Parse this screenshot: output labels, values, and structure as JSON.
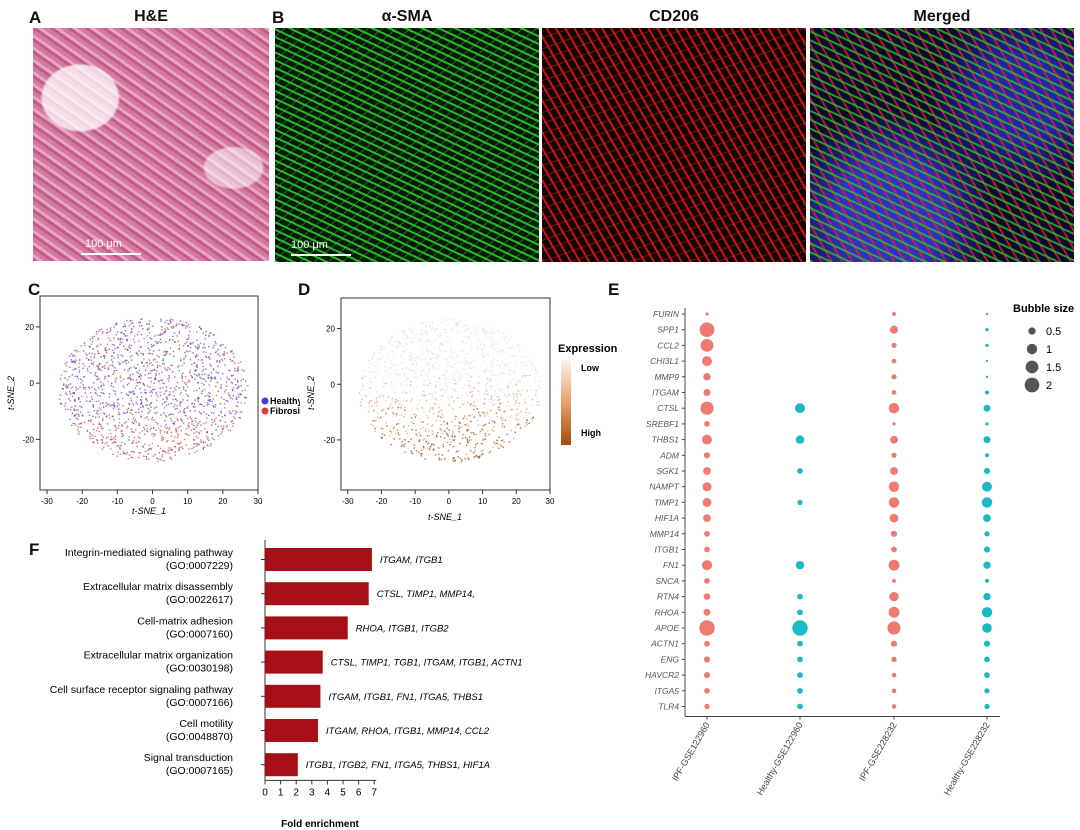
{
  "panels": {
    "A": {
      "label": "A",
      "title": "H&E",
      "scale": "100 μm"
    },
    "B": {
      "label": "B",
      "titles": [
        "α-SMA",
        "CD206",
        "Merged"
      ],
      "scale": "100 μm"
    },
    "C": {
      "label": "C"
    },
    "D": {
      "label": "D"
    },
    "E": {
      "label": "E"
    },
    "F": {
      "label": "F"
    }
  },
  "colors": {
    "healthy": "#4b3cc8",
    "fibrosis": "#e33a3a",
    "ipf_bubble": "#ee7a72",
    "healthy_bubble": "#1ab9c4",
    "bar": "#a50f15"
  },
  "chart_data": [
    {
      "type": "scatter",
      "panel": "C",
      "xlabel": "t-SNE_1",
      "ylabel": "t-SNE_2",
      "xticks": [
        -30,
        -20,
        -10,
        0,
        10,
        20,
        30
      ],
      "yticks": [
        20,
        0,
        -20
      ],
      "xlim": [
        -32,
        30
      ],
      "ylim": [
        -38,
        31
      ],
      "legend": [
        "Healthy",
        "Fibrosis"
      ],
      "legend_position": "right"
    },
    {
      "type": "scatter",
      "panel": "D",
      "xlabel": "t-SNE_1",
      "ylabel": "t-SNE_2",
      "xticks": [
        -30,
        -20,
        -10,
        0,
        10,
        20,
        30
      ],
      "yticks": [
        20,
        0,
        -20
      ],
      "xlim": [
        -32,
        30
      ],
      "ylim": [
        -38,
        31
      ],
      "colorbar": {
        "title": "Expression",
        "low": "Low",
        "high": "High"
      }
    },
    {
      "type": "bubble",
      "panel": "E",
      "genes": [
        "FURIN",
        "SPP1",
        "CCL2",
        "CHI3L1",
        "MMP9",
        "ITGAM",
        "CTSL",
        "SREBF1",
        "THBS1",
        "ADM",
        "SGK1",
        "NAMPT",
        "TIMP1",
        "HIF1A",
        "MMP14",
        "ITGB1",
        "FN1",
        "SNCA",
        "RTN4",
        "RHOA",
        "APOE",
        "ACTN1",
        "ENG",
        "HAVCR2",
        "ITGA5",
        "TLR4"
      ],
      "columns": [
        "IPF-GSE122960",
        "Healthy-GSE122960",
        "IPF-GSE228232",
        "Healthy-GSE228232"
      ],
      "sizes": [
        [
          0.1,
          2.0,
          1.5,
          0.9,
          0.5,
          0.45,
          1.6,
          0.3,
          0.9,
          0.35,
          0.55,
          0.75,
          0.75,
          0.55,
          0.3,
          0.3,
          0.95,
          0.3,
          0.4,
          0.45,
          2.2,
          0.3,
          0.35,
          0.35,
          0.3,
          0.25
        ],
        [
          0,
          0,
          0,
          0,
          0,
          0,
          0.9,
          0,
          0.65,
          0,
          0.3,
          0,
          0.25,
          0,
          0,
          0,
          0.65,
          0,
          0.3,
          0.3,
          2.2,
          0.3,
          0.3,
          0.3,
          0.3,
          0.3
        ],
        [
          0.15,
          0.6,
          0.25,
          0.2,
          0.25,
          0.2,
          1.0,
          0.1,
          0.55,
          0.25,
          0.55,
          1.0,
          1.0,
          0.7,
          0.35,
          0.3,
          1.1,
          0.15,
          0.8,
          1.1,
          1.6,
          0.35,
          0.25,
          0.2,
          0.2,
          0.2
        ],
        [
          0.05,
          0.1,
          0.1,
          0.05,
          0.05,
          0.15,
          0.45,
          0.1,
          0.45,
          0.15,
          0.35,
          0.9,
          1.0,
          0.55,
          0.25,
          0.35,
          0.5,
          0.15,
          0.5,
          1.0,
          0.85,
          0.35,
          0.3,
          0.3,
          0.25,
          0.25
        ]
      ],
      "legend_title": "Bubble size",
      "legend_values": [
        "0.5",
        "1",
        "1.5",
        "2"
      ],
      "legend_position": "top-right"
    },
    {
      "type": "bar",
      "panel": "F",
      "orientation": "horizontal",
      "categories": [
        [
          "Integrin-mediated signaling pathway",
          "(GO:0007229)"
        ],
        [
          "Extracellular matrix disassembly",
          "(GO:0022617)"
        ],
        [
          "Cell-matrix adhesion",
          "(GO:0007160)"
        ],
        [
          "Extracellular matrix organization",
          "(GO:0030198)"
        ],
        [
          "Cell surface receptor signaling pathway",
          "(GO:0007166)"
        ],
        [
          "Cell motility",
          "(GO:0048870)"
        ],
        [
          "Signal transduction",
          "(GO:0007165)"
        ]
      ],
      "values": [
        6.85,
        6.65,
        5.3,
        3.7,
        3.55,
        3.4,
        2.1
      ],
      "genes": [
        "ITGAM, ITGB1",
        "CTSL, TIMP1, MMP14,",
        "RHOA, ITGB1, ITGB2",
        "CTSL, TIMP1, TGB1, ITGAM, ITGB1, ACTN1",
        "ITGAM, ITGB1, FN1, ITGA5, THBS1",
        "ITGAM, RHOA, ITGB1, MMP14, CCL2",
        "ITGB1, ITGB2, FN1, ITGA5, THBS1, HIF1A"
      ],
      "xlabel": "Fold enrichment",
      "xticks": [
        0,
        1,
        2,
        3,
        4,
        5,
        6,
        7
      ],
      "xlim": [
        0,
        7
      ]
    }
  ]
}
